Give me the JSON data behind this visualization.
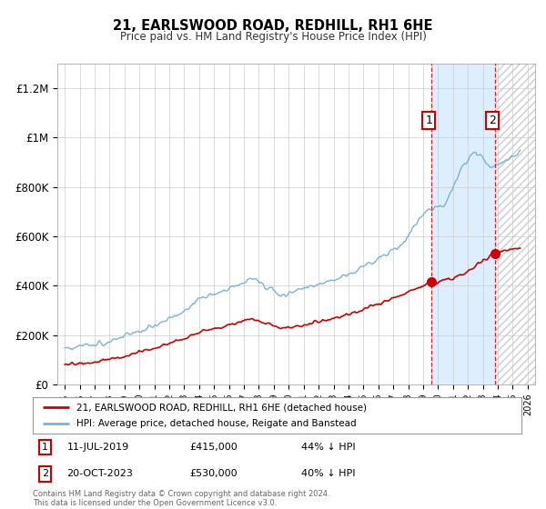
{
  "title": "21, EARLSWOOD ROAD, REDHILL, RH1 6HE",
  "subtitle": "Price paid vs. HM Land Registry's House Price Index (HPI)",
  "hpi_label": "HPI: Average price, detached house, Reigate and Banstead",
  "property_label": "21, EARLSWOOD ROAD, REDHILL, RH1 6HE (detached house)",
  "annotation1": {
    "label": "1",
    "date": "11-JUL-2019",
    "price": 415000,
    "pct": "44% ↓ HPI",
    "x_year": 2019.53
  },
  "annotation2": {
    "label": "2",
    "date": "20-OCT-2023",
    "price": 530000,
    "pct": "40% ↓ HPI",
    "x_year": 2023.79
  },
  "footer": "Contains HM Land Registry data © Crown copyright and database right 2024.\nThis data is licensed under the Open Government Licence v3.0.",
  "hpi_color": "#7ab3d4",
  "property_color": "#cc0000",
  "vline_color": "#cc0000",
  "annotation_box_color": "#cc0000",
  "shade_color": "#ddeeff",
  "hatch_color": "#bbbbbb",
  "ylim": [
    0,
    1300000
  ],
  "xlim_start": 1994.5,
  "xlim_end": 2026.5
}
